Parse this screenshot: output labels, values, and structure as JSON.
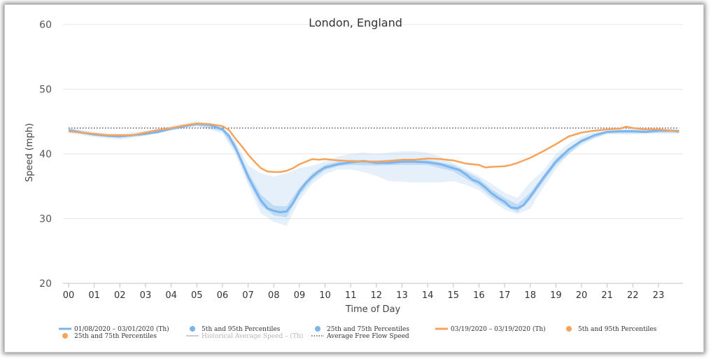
{
  "chart_data": {
    "type": "line",
    "title": "London, England",
    "xlabel": "Time of Day",
    "ylabel": "Speed (mph)",
    "ylim": [
      20,
      60
    ],
    "yticks": [
      "20",
      "30",
      "40",
      "50",
      "60"
    ],
    "xticks": [
      "00",
      "01",
      "02",
      "03",
      "04",
      "05",
      "06",
      "07",
      "08",
      "09",
      "10",
      "11",
      "12",
      "13",
      "14",
      "15",
      "16",
      "17",
      "18",
      "19",
      "20",
      "21",
      "22",
      "23"
    ],
    "grid": "horizontal",
    "legend_position": "bottom",
    "free_flow_speed": 44.0,
    "series": [
      {
        "name": "01/08/2020 – 03/01/2020 (Th)",
        "color": "#7cb5ec",
        "points": [
          [
            0,
            43.7
          ],
          [
            0.5,
            43.3
          ],
          [
            1,
            43.0
          ],
          [
            1.5,
            42.8
          ],
          [
            2,
            42.7
          ],
          [
            2.5,
            42.9
          ],
          [
            3,
            43.1
          ],
          [
            3.5,
            43.4
          ],
          [
            4,
            43.9
          ],
          [
            4.5,
            44.3
          ],
          [
            5,
            44.6
          ],
          [
            5.5,
            44.5
          ],
          [
            6,
            43.8
          ],
          [
            6.25,
            42.8
          ],
          [
            6.5,
            41.0
          ],
          [
            6.75,
            38.8
          ],
          [
            7,
            36.5
          ],
          [
            7.25,
            34.6
          ],
          [
            7.5,
            32.8
          ],
          [
            7.75,
            31.6
          ],
          [
            8,
            31.2
          ],
          [
            8.25,
            31.0
          ],
          [
            8.5,
            31.1
          ],
          [
            8.75,
            32.4
          ],
          [
            9,
            34.2
          ],
          [
            9.25,
            35.5
          ],
          [
            9.5,
            36.5
          ],
          [
            9.75,
            37.3
          ],
          [
            10,
            37.9
          ],
          [
            10.5,
            38.4
          ],
          [
            11,
            38.7
          ],
          [
            11.5,
            38.9
          ],
          [
            12,
            38.6
          ],
          [
            12.5,
            38.6
          ],
          [
            13,
            38.8
          ],
          [
            13.5,
            38.8
          ],
          [
            14,
            38.7
          ],
          [
            14.5,
            38.4
          ],
          [
            15,
            37.8
          ],
          [
            15.25,
            37.5
          ],
          [
            15.5,
            36.8
          ],
          [
            15.75,
            36.0
          ],
          [
            16,
            35.6
          ],
          [
            16.25,
            34.8
          ],
          [
            16.5,
            33.9
          ],
          [
            16.75,
            33.2
          ],
          [
            17,
            32.6
          ],
          [
            17.25,
            31.7
          ],
          [
            17.5,
            31.6
          ],
          [
            17.75,
            32.1
          ],
          [
            18,
            33.4
          ],
          [
            18.5,
            36.2
          ],
          [
            19,
            38.8
          ],
          [
            19.5,
            40.7
          ],
          [
            20,
            42.0
          ],
          [
            20.5,
            42.9
          ],
          [
            21,
            43.4
          ],
          [
            21.5,
            43.5
          ],
          [
            22,
            43.5
          ],
          [
            22.5,
            43.4
          ],
          [
            23,
            43.6
          ],
          [
            23.5,
            43.6
          ],
          [
            23.8,
            43.5
          ]
        ]
      },
      {
        "name": "03/19/2020 – 03/19/2020 (Th)",
        "color": "#f7a35c",
        "points": [
          [
            0,
            43.5
          ],
          [
            0.5,
            43.3
          ],
          [
            1,
            43.1
          ],
          [
            1.5,
            42.9
          ],
          [
            2,
            42.9
          ],
          [
            2.5,
            42.9
          ],
          [
            3,
            43.3
          ],
          [
            3.5,
            43.7
          ],
          [
            4,
            44.0
          ],
          [
            4.5,
            44.4
          ],
          [
            5,
            44.7
          ],
          [
            5.5,
            44.6
          ],
          [
            6,
            44.3
          ],
          [
            6.25,
            43.7
          ],
          [
            6.5,
            42.4
          ],
          [
            6.75,
            41.2
          ],
          [
            7,
            39.9
          ],
          [
            7.25,
            38.8
          ],
          [
            7.5,
            37.8
          ],
          [
            7.75,
            37.3
          ],
          [
            8,
            37.2
          ],
          [
            8.25,
            37.2
          ],
          [
            8.5,
            37.4
          ],
          [
            8.75,
            37.8
          ],
          [
            9,
            38.4
          ],
          [
            9.25,
            38.8
          ],
          [
            9.5,
            39.2
          ],
          [
            9.75,
            39.1
          ],
          [
            10,
            39.2
          ],
          [
            10.5,
            39.0
          ],
          [
            11,
            38.9
          ],
          [
            11.5,
            38.8
          ],
          [
            12,
            38.8
          ],
          [
            12.5,
            38.9
          ],
          [
            13,
            39.1
          ],
          [
            13.5,
            39.1
          ],
          [
            14,
            39.3
          ],
          [
            14.5,
            39.2
          ],
          [
            15,
            39.0
          ],
          [
            15.5,
            38.5
          ],
          [
            16,
            38.3
          ],
          [
            16.25,
            37.9
          ],
          [
            16.5,
            38.0
          ],
          [
            17,
            38.1
          ],
          [
            17.25,
            38.3
          ],
          [
            17.5,
            38.6
          ],
          [
            18,
            39.4
          ],
          [
            18.5,
            40.4
          ],
          [
            19,
            41.5
          ],
          [
            19.5,
            42.7
          ],
          [
            20,
            43.3
          ],
          [
            20.5,
            43.6
          ],
          [
            21,
            43.8
          ],
          [
            21.5,
            43.9
          ],
          [
            21.75,
            44.2
          ],
          [
            22,
            44.0
          ],
          [
            22.5,
            43.8
          ],
          [
            23,
            43.8
          ],
          [
            23.5,
            43.6
          ],
          [
            23.8,
            43.4
          ]
        ]
      }
    ],
    "band_5_95": [
      [
        0,
        43.2,
        44.1
      ],
      [
        1,
        42.6,
        43.4
      ],
      [
        2,
        42.2,
        43.1
      ],
      [
        3,
        42.8,
        43.6
      ],
      [
        4,
        43.6,
        44.3
      ],
      [
        5,
        44.2,
        45.1
      ],
      [
        6,
        43.2,
        44.3
      ],
      [
        6.5,
        40.0,
        42.0
      ],
      [
        7,
        35.2,
        38.2
      ],
      [
        7.5,
        30.8,
        37.0
      ],
      [
        8,
        29.5,
        36.5
      ],
      [
        8.5,
        28.9,
        37.0
      ],
      [
        9,
        32.8,
        37.8
      ],
      [
        9.5,
        35.4,
        38.2
      ],
      [
        10,
        36.9,
        38.8
      ],
      [
        10.5,
        37.6,
        39.6
      ],
      [
        11,
        37.6,
        40.0
      ],
      [
        11.5,
        37.2,
        40.2
      ],
      [
        12,
        36.6,
        40.0
      ],
      [
        12.5,
        35.8,
        40.2
      ],
      [
        13,
        35.7,
        40.4
      ],
      [
        13.5,
        35.6,
        40.4
      ],
      [
        14,
        35.6,
        40.2
      ],
      [
        14.5,
        35.6,
        39.6
      ],
      [
        15,
        35.8,
        38.6
      ],
      [
        15.5,
        35.2,
        37.6
      ],
      [
        16,
        34.4,
        36.6
      ],
      [
        16.5,
        32.8,
        35.4
      ],
      [
        17,
        31.4,
        34.0
      ],
      [
        17.5,
        30.7,
        33.2
      ],
      [
        18,
        31.5,
        35.6
      ],
      [
        18.5,
        34.8,
        37.4
      ],
      [
        19,
        37.6,
        40.0
      ],
      [
        19.5,
        40.0,
        41.6
      ],
      [
        20,
        41.3,
        42.7
      ],
      [
        20.5,
        42.4,
        43.5
      ],
      [
        21,
        43.0,
        43.8
      ],
      [
        22,
        43.0,
        44.0
      ],
      [
        23,
        43.1,
        43.9
      ],
      [
        23.8,
        43.1,
        43.8
      ]
    ],
    "band_25_75": [
      [
        0,
        43.5,
        43.9
      ],
      [
        1,
        42.9,
        43.2
      ],
      [
        2,
        42.5,
        42.9
      ],
      [
        3,
        42.9,
        43.3
      ],
      [
        4,
        43.7,
        44.1
      ],
      [
        5,
        44.4,
        44.8
      ],
      [
        6,
        43.5,
        44.1
      ],
      [
        6.5,
        40.5,
        41.6
      ],
      [
        7,
        35.8,
        37.2
      ],
      [
        7.5,
        32.0,
        33.7
      ],
      [
        8,
        30.5,
        32.0
      ],
      [
        8.5,
        30.2,
        31.9
      ],
      [
        9,
        33.6,
        34.8
      ],
      [
        9.5,
        36.0,
        37.0
      ],
      [
        10,
        37.5,
        38.3
      ],
      [
        10.5,
        38.1,
        38.8
      ],
      [
        11,
        38.3,
        39.1
      ],
      [
        12,
        38.2,
        39.0
      ],
      [
        13,
        38.3,
        39.2
      ],
      [
        14,
        38.3,
        39.1
      ],
      [
        15,
        37.3,
        38.3
      ],
      [
        16,
        35.0,
        36.2
      ],
      [
        16.5,
        33.3,
        34.5
      ],
      [
        17,
        32.0,
        33.2
      ],
      [
        17.5,
        31.0,
        32.2
      ],
      [
        18,
        32.9,
        34.0
      ],
      [
        19,
        38.3,
        39.3
      ],
      [
        20,
        41.7,
        42.3
      ],
      [
        21,
        43.2,
        43.6
      ],
      [
        22,
        43.2,
        43.7
      ],
      [
        23,
        43.3,
        43.8
      ],
      [
        23.8,
        43.3,
        43.7
      ]
    ],
    "legend": [
      {
        "label": "01/08/2020 – 03/01/2020 (Th)",
        "symbol": "line",
        "color": "#7cb5ec"
      },
      {
        "label": "5th and 95th Percentiles",
        "symbol": "dot",
        "color": "#7cb5ec"
      },
      {
        "label": "25th and 75th Percentiles",
        "symbol": "dot",
        "color": "#7cb5ec"
      },
      {
        "label": "03/19/2020 – 03/19/2020 (Th)",
        "symbol": "line",
        "color": "#f7a35c"
      },
      {
        "label": "5th and 95th Percentiles",
        "symbol": "dot",
        "color": "#f7a35c"
      },
      {
        "label": "25th and 75th Percentiles",
        "symbol": "dot",
        "color": "#f7a35c"
      },
      {
        "label": "Historical Average Speed – (Th)",
        "symbol": "line",
        "color": "#cccccc",
        "muted": true
      },
      {
        "label": "Average Free Flow Speed",
        "symbol": "dotted",
        "color": "#555577"
      }
    ]
  }
}
